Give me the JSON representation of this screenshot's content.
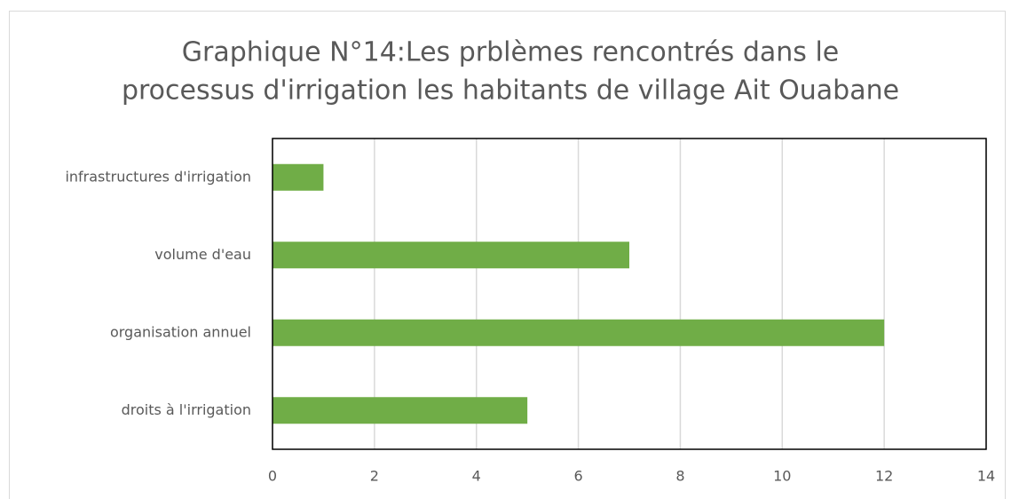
{
  "chart_data": {
    "type": "bar",
    "orientation": "horizontal",
    "title": [
      "Graphique N°14:Les prblèmes rencontrés dans le",
      "processus d'irrigation les habitants de village Ait Ouabane"
    ],
    "categories": [
      "infrastructures d'irrigation",
      "volume d'eau",
      "organisation annuel",
      "droits à l'irrigation"
    ],
    "values": [
      1,
      7,
      12,
      5
    ],
    "color": "#70ad47",
    "xlim": [
      0,
      14
    ],
    "xticks": [
      0,
      2,
      4,
      6,
      8,
      10,
      12,
      14
    ],
    "grid": true
  }
}
